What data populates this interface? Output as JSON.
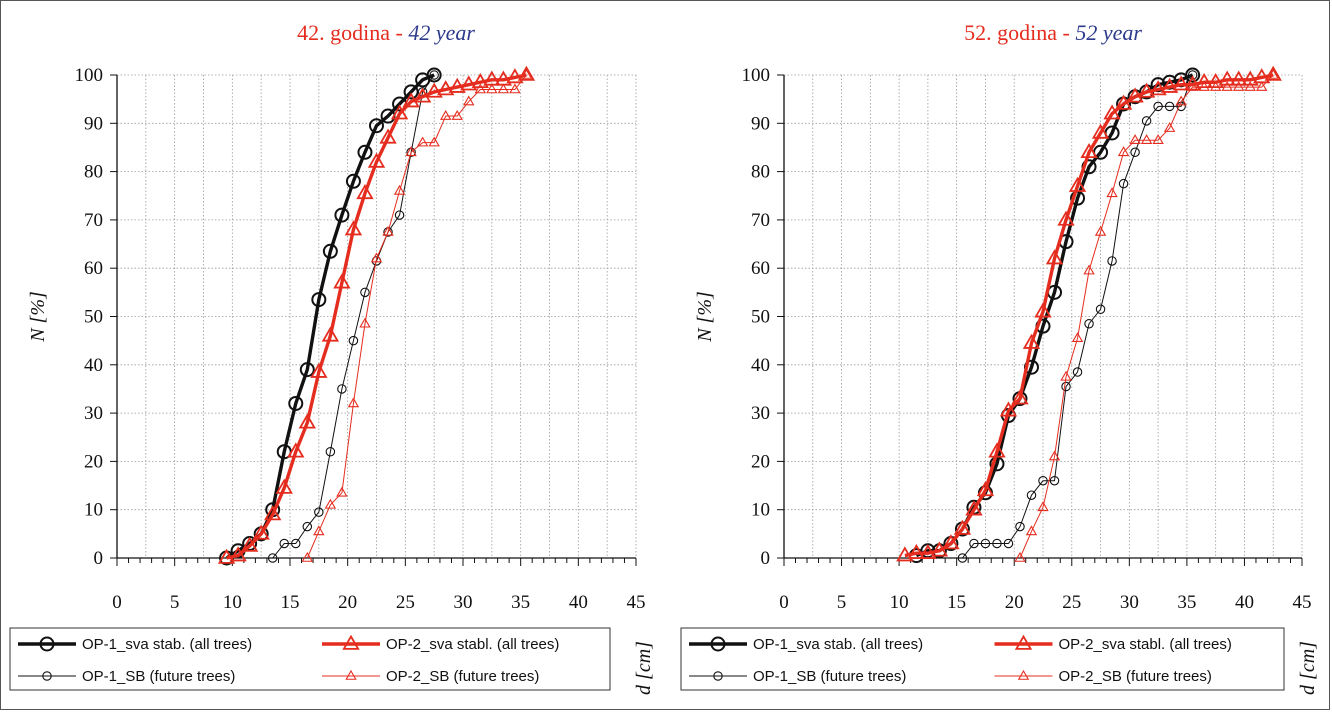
{
  "chart_data": [
    {
      "type": "line",
      "title": "42. godina",
      "title_sep": " - ",
      "subtitle": "42 year",
      "xlabel": "d [cm]",
      "ylabel": "N [%]",
      "xlim": [
        0,
        45
      ],
      "ylim": [
        0,
        100
      ],
      "xticks": [
        0,
        5,
        10,
        15,
        20,
        25,
        30,
        35,
        40,
        45
      ],
      "yticks": [
        0,
        10,
        20,
        30,
        40,
        50,
        60,
        70,
        80,
        90,
        100
      ],
      "grid": true,
      "legend_position": "bottom",
      "series": [
        {
          "name": "OP-1_sva stab. (all trees)",
          "color": "#111111",
          "marker": "circle",
          "weight": "thick",
          "x": [
            9.5,
            10.5,
            11.5,
            12.5,
            13.5,
            14.5,
            15.5,
            16.5,
            17.5,
            18.5,
            19.5,
            20.5,
            21.5,
            22.5,
            23.5,
            24.5,
            25.5,
            26.5,
            27.5
          ],
          "y": [
            0,
            1.5,
            3,
            5,
            10,
            22,
            32,
            39,
            53.5,
            63.5,
            71,
            78,
            84,
            89.5,
            91.5,
            94,
            96.5,
            99,
            100
          ]
        },
        {
          "name": "OP-2_sva stabl. (all trees)",
          "color": "#e52d1f",
          "marker": "triangle",
          "weight": "thick",
          "x": [
            9.5,
            10.5,
            11.5,
            12.5,
            13.5,
            14.5,
            15.5,
            16.5,
            17.5,
            18.5,
            19.5,
            20.5,
            21.5,
            22.5,
            23.5,
            24.5,
            25.5,
            26.5,
            27.5,
            28.5,
            29.5,
            30.5,
            31.5,
            32.5,
            33.5,
            34.5,
            35.5
          ],
          "y": [
            0,
            0.5,
            2.5,
            5,
            9,
            14.5,
            22,
            28,
            38.5,
            46,
            57,
            68,
            75.5,
            82,
            87,
            92,
            94.5,
            95.5,
            96.5,
            97,
            97.5,
            98,
            98.5,
            99,
            99,
            99.5,
            100
          ]
        },
        {
          "name": "OP-1_SB (future trees)",
          "color": "#111111",
          "marker": "circle",
          "weight": "thin",
          "x": [
            13.5,
            14.5,
            15.5,
            16.5,
            17.5,
            18.5,
            19.5,
            20.5,
            21.5,
            22.5,
            23.5,
            24.5,
            25.5,
            26.5,
            27.5
          ],
          "y": [
            0,
            3,
            3,
            6.5,
            9.5,
            22,
            35,
            45,
            55,
            61.5,
            67.5,
            71,
            84,
            96.5,
            100
          ]
        },
        {
          "name": "OP-2_SB (future trees)",
          "color": "#e52d1f",
          "marker": "triangle",
          "weight": "thin",
          "x": [
            16.5,
            17.5,
            18.5,
            19.5,
            20.5,
            21.5,
            22.5,
            23.5,
            24.5,
            25.5,
            26.5,
            27.5,
            28.5,
            29.5,
            30.5,
            31.5,
            32.5,
            33.5,
            34.5,
            35.5
          ],
          "y": [
            0,
            5.5,
            11,
            13.5,
            32,
            48.5,
            62,
            67.5,
            76,
            84,
            86,
            86,
            91.5,
            91.5,
            94.5,
            97,
            97,
            97,
            97,
            100
          ]
        }
      ]
    },
    {
      "type": "line",
      "title": "52. godina",
      "title_sep": " - ",
      "subtitle": "52 year",
      "xlabel": "d [cm]",
      "ylabel": "N [%]",
      "xlim": [
        0,
        45
      ],
      "ylim": [
        0,
        100
      ],
      "xticks": [
        0,
        5,
        10,
        15,
        20,
        25,
        30,
        35,
        40,
        45
      ],
      "yticks": [
        0,
        10,
        20,
        30,
        40,
        50,
        60,
        70,
        80,
        90,
        100
      ],
      "grid": true,
      "legend_position": "bottom",
      "series": [
        {
          "name": "OP-1_sva stab. (all trees)",
          "color": "#111111",
          "marker": "circle",
          "weight": "thick",
          "x": [
            11.5,
            12.5,
            13.5,
            14.5,
            15.5,
            16.5,
            17.5,
            18.5,
            19.5,
            20.5,
            21.5,
            22.5,
            23.5,
            24.5,
            25.5,
            26.5,
            27.5,
            28.5,
            29.5,
            30.5,
            31.5,
            32.5,
            33.5,
            34.5,
            35.5
          ],
          "y": [
            0.5,
            1.5,
            1.5,
            3,
            6,
            10.5,
            13.5,
            19.5,
            29.5,
            33,
            39.5,
            48,
            55,
            65.5,
            74.5,
            81,
            84,
            88,
            94,
            95.5,
            96.5,
            98,
            98.5,
            99,
            100
          ]
        },
        {
          "name": "OP-2_sva stabl. (all trees)",
          "color": "#e52d1f",
          "marker": "triangle",
          "weight": "thick",
          "x": [
            10.5,
            11.5,
            12.5,
            13.5,
            14.5,
            15.5,
            16.5,
            17.5,
            18.5,
            19.5,
            20.5,
            21.5,
            22.5,
            23.5,
            24.5,
            25.5,
            26.5,
            27.5,
            28.5,
            29.5,
            30.5,
            31.5,
            32.5,
            33.5,
            34.5,
            35.5,
            36.5,
            37.5,
            38.5,
            39.5,
            40.5,
            41.5,
            42.5
          ],
          "y": [
            0.5,
            1,
            1,
            1.5,
            3,
            6,
            10,
            14,
            22,
            30.5,
            33,
            44.5,
            51,
            62,
            70,
            77,
            84,
            88,
            92,
            94,
            95.5,
            96.5,
            97,
            97.5,
            98,
            98,
            98.5,
            98.5,
            99,
            99,
            99,
            99.5,
            100
          ]
        },
        {
          "name": "OP-1_SB (future trees)",
          "color": "#111111",
          "marker": "circle",
          "weight": "thin",
          "x": [
            15.5,
            16.5,
            17.5,
            18.5,
            19.5,
            20.5,
            21.5,
            22.5,
            23.5,
            24.5,
            25.5,
            26.5,
            27.5,
            28.5,
            29.5,
            30.5,
            31.5,
            32.5,
            33.5,
            34.5,
            35.5
          ],
          "y": [
            0,
            3,
            3,
            3,
            3,
            6.5,
            13,
            16,
            16,
            35.5,
            38.5,
            48.5,
            51.5,
            61.5,
            77.5,
            84,
            90.5,
            93.5,
            93.5,
            93.5,
            100
          ]
        },
        {
          "name": "OP-2_SB (future trees)",
          "color": "#e52d1f",
          "marker": "triangle",
          "weight": "thin",
          "x": [
            20.5,
            21.5,
            22.5,
            23.5,
            24.5,
            25.5,
            26.5,
            27.5,
            28.5,
            29.5,
            30.5,
            31.5,
            32.5,
            33.5,
            34.5,
            35.5,
            36.5,
            37.5,
            38.5,
            39.5,
            40.5,
            41.5,
            42.5
          ],
          "y": [
            0,
            5.5,
            10.5,
            21,
            37.5,
            45.5,
            59.5,
            67.5,
            75.5,
            84,
            86.5,
            86.5,
            86.5,
            89,
            94.5,
            97.5,
            97.5,
            97.5,
            97.5,
            97.5,
            97.5,
            97.5,
            100
          ]
        }
      ]
    }
  ]
}
